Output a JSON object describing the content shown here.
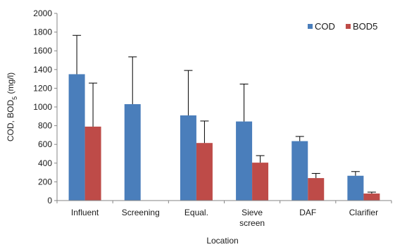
{
  "chart_data": {
    "type": "bar",
    "categories": [
      "Influent",
      "Screening",
      "Equal.",
      "Sieve screen",
      "DAF",
      "Clarifier"
    ],
    "category_lines": [
      [
        "Influent"
      ],
      [
        "Screening"
      ],
      [
        "Equal."
      ],
      [
        "Sieve",
        "screen"
      ],
      [
        "DAF"
      ],
      [
        "Clarifier"
      ]
    ],
    "series": [
      {
        "name": "COD",
        "color": "#4a7ebb",
        "values": [
          1350,
          1030,
          910,
          845,
          635,
          265
        ],
        "errors": [
          415,
          505,
          480,
          400,
          50,
          45
        ]
      },
      {
        "name": "BOD5",
        "color": "#be4b48",
        "values": [
          790,
          null,
          615,
          405,
          240,
          75
        ],
        "errors": [
          465,
          null,
          235,
          75,
          50,
          15
        ]
      }
    ],
    "xlabel": "Location",
    "ylabel": "COD, BOD5 (mg/l)",
    "ylim": [
      0,
      2000
    ],
    "yticks": [
      0,
      200,
      400,
      600,
      800,
      1000,
      1200,
      1400,
      1600,
      1800,
      2000
    ],
    "grid": false,
    "legend_position": "top-right",
    "error_bars": "positive"
  }
}
